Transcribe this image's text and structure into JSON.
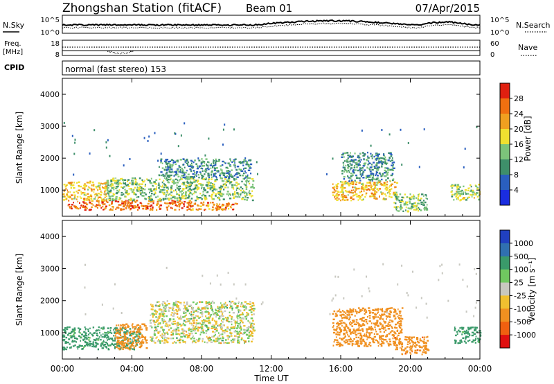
{
  "header": {
    "station": "Zhongshan Station (fitACF)",
    "beam": "Beam 01",
    "date": "07/Apr/2015"
  },
  "noise_panel": {
    "left_label": "N.Sky",
    "right_label": "N.Search",
    "left_ticks": [
      "10^5",
      "10^0"
    ],
    "right_ticks": [
      "10^5",
      "10^0"
    ]
  },
  "freq_panel": {
    "left_label_1": "Freq.",
    "left_label_2": "[MHz]",
    "left_ticks": [
      "18",
      "8"
    ],
    "right_label": "Nave",
    "right_ticks": [
      "60",
      "0"
    ]
  },
  "cpid_panel": {
    "label": "CPID",
    "mode_text": "normal (fast stereo) 153"
  },
  "power_panel": {
    "ylabel": "Slant Range [km]",
    "yticks": [
      "4000",
      "3000",
      "2000",
      "1000"
    ],
    "colorbar_label": "Power [dB]",
    "colorbar_ticks": [
      "28",
      "24",
      "20",
      "16",
      "12",
      "8",
      "4"
    ],
    "colors": [
      "#1a2de0",
      "#2a5fbf",
      "#3e8f6a",
      "#7cc47a",
      "#f0e030",
      "#f0a020",
      "#f07010",
      "#e02010"
    ]
  },
  "velocity_panel": {
    "ylabel": "Slant Range [km]",
    "yticks": [
      "4000",
      "3000",
      "2000",
      "1000"
    ],
    "colorbar_label": "Velocity [m s⁻¹]",
    "colorbar_ticks": [
      "1000",
      "500",
      "100",
      "25",
      "-25",
      "-100",
      "-500",
      "-1000"
    ],
    "colors": [
      "#2040c0",
      "#3070b0",
      "#3a9a6a",
      "#70c860",
      "#c8c8c0",
      "#f0c030",
      "#f09020",
      "#f06010",
      "#e01010"
    ]
  },
  "x_axis": {
    "label": "Time UT",
    "ticks": [
      "00:00",
      "04:00",
      "08:00",
      "12:00",
      "16:00",
      "20:00",
      "00:00"
    ]
  },
  "chart_data": {
    "type": "heatmap",
    "title": "Zhongshan Station (fitACF)  Beam 01  07/Apr/2015",
    "xlabel": "Time UT",
    "xlim": [
      "00:00",
      "24:00"
    ],
    "ylabel": "Slant Range [km]",
    "ylim": [
      180,
      4500
    ],
    "panels": [
      {
        "name": "Power [dB]",
        "color_scale": [
          4,
          8,
          12,
          16,
          20,
          24,
          28
        ],
        "regions": [
          {
            "t": [
              0.3,
              7.5
            ],
            "r": [
              400,
              700
            ],
            "value": 26
          },
          {
            "t": [
              0.0,
              2.5
            ],
            "r": [
              700,
              1300
            ],
            "value": 20
          },
          {
            "t": [
              2.5,
              11.0
            ],
            "r": [
              700,
              1400
            ],
            "value": 14
          },
          {
            "t": [
              5.5,
              10.8
            ],
            "r": [
              1400,
              2000
            ],
            "value": 10
          },
          {
            "t": [
              7.0,
              10.0
            ],
            "r": [
              400,
              650
            ],
            "value": 24
          },
          {
            "t": [
              15.5,
              19.2
            ],
            "r": [
              700,
              1300
            ],
            "value": 20
          },
          {
            "t": [
              16.0,
              19.0
            ],
            "r": [
              1300,
              2200
            ],
            "value": 10
          },
          {
            "t": [
              19.0,
              21.0
            ],
            "r": [
              350,
              900
            ],
            "value": 14
          },
          {
            "t": [
              22.3,
              24.0
            ],
            "r": [
              700,
              1200
            ],
            "value": 16
          }
        ]
      },
      {
        "name": "Velocity [m s^-1]",
        "color_scale": [
          -1000,
          -500,
          -100,
          -25,
          25,
          100,
          500,
          1000
        ],
        "regions": [
          {
            "t": [
              0.0,
              4.5
            ],
            "r": [
              500,
              1200
            ],
            "value": 200
          },
          {
            "t": [
              3.0,
              4.8
            ],
            "r": [
              500,
              1300
            ],
            "value": -300
          },
          {
            "t": [
              5.0,
              11.0
            ],
            "r": [
              700,
              2000
            ],
            "value": 0
          },
          {
            "t": [
              15.5,
              19.5
            ],
            "r": [
              600,
              1800
            ],
            "value": -300
          },
          {
            "t": [
              19.0,
              21.0
            ],
            "r": [
              350,
              900
            ],
            "value": -400
          },
          {
            "t": [
              22.5,
              24.0
            ],
            "r": [
              700,
              1200
            ],
            "value": 200
          }
        ]
      }
    ],
    "noise_sky_range": [
      "10^0",
      "10^5"
    ],
    "frequency_range_mhz": [
      8,
      18
    ],
    "nave_range": [
      0,
      60
    ],
    "cpid": "normal (fast stereo) 153"
  }
}
